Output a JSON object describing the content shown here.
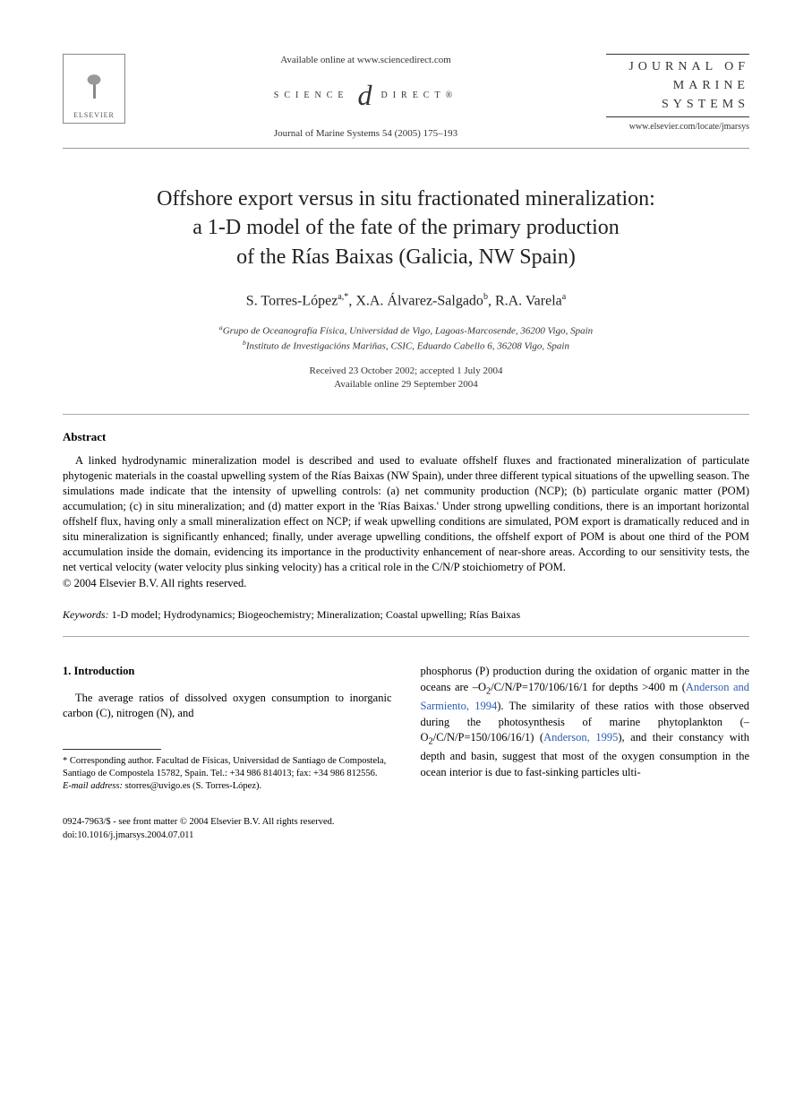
{
  "header": {
    "elsevier_label": "ELSEVIER",
    "available_online": "Available online at www.sciencedirect.com",
    "scidirect_left": "SCIENCE",
    "scidirect_d": "d",
    "scidirect_right": "DIRECT®",
    "citation": "Journal of Marine Systems 54 (2005) 175–193",
    "journal_line1": "JOURNAL OF",
    "journal_line2": "MARINE",
    "journal_line3": "SYSTEMS",
    "journal_url": "www.elsevier.com/locate/jmarsys"
  },
  "title": {
    "line1": "Offshore export versus in situ fractionated mineralization:",
    "line2": "a 1-D model of the fate of the primary production",
    "line3": "of the Rías Baixas (Galicia, NW Spain)"
  },
  "authors": {
    "a1_name": "S. Torres-López",
    "a1_sup": "a,*",
    "a2_name": "X.A. Álvarez-Salgado",
    "a2_sup": "b",
    "a3_name": "R.A. Varela",
    "a3_sup": "a"
  },
  "affiliations": {
    "a": "Grupo de Oceanografía Física, Universidad de Vigo, Lagoas-Marcosende, 36200 Vigo, Spain",
    "a_sup": "a",
    "b": "Instituto de Investigacións Mariñas, CSIC, Eduardo Cabello 6, 36208 Vigo, Spain",
    "b_sup": "b"
  },
  "dates": {
    "received": "Received 23 October 2002; accepted 1 July 2004",
    "online": "Available online 29 September 2004"
  },
  "abstract": {
    "heading": "Abstract",
    "body": "A linked hydrodynamic mineralization model is described and used to evaluate offshelf fluxes and fractionated mineralization of particulate phytogenic materials in the coastal upwelling system of the Rías Baixas (NW Spain), under three different typical situations of the upwelling season. The simulations made indicate that the intensity of upwelling controls: (a) net community production (NCP); (b) particulate organic matter (POM) accumulation; (c) in situ mineralization; and (d) matter export in the 'Rías Baixas.' Under strong upwelling conditions, there is an important horizontal offshelf flux, having only a small mineralization effect on NCP; if weak upwelling conditions are simulated, POM export is dramatically reduced and in situ mineralization is significantly enhanced; finally, under average upwelling conditions, the offshelf export of POM is about one third of the POM accumulation inside the domain, evidencing its importance in the productivity enhancement of near-shore areas. According to our sensitivity tests, the net vertical velocity (water velocity plus sinking velocity) has a critical role in the C/N/P stoichiometry of POM.",
    "copyright": "© 2004 Elsevier B.V. All rights reserved."
  },
  "keywords": {
    "label": "Keywords:",
    "text": " 1-D model; Hydrodynamics; Biogeochemistry; Mineralization; Coastal upwelling; Rías Baixas"
  },
  "intro": {
    "heading": "1. Introduction",
    "left_para": "The average ratios of dissolved oxygen consumption to inorganic carbon (C), nitrogen (N), and",
    "right_para_1a": "phosphorus (P) production during the oxidation of organic matter in the oceans are –O",
    "right_para_1a_sub": "2",
    "right_para_1b": "/C/N/P=170/106/16/1 for depths >400 m (",
    "right_cite1": "Anderson and Sarmiento, 1994",
    "right_para_1c": "). The similarity of these ratios with those observed during the photosynthesis of marine phytoplankton (–O",
    "right_para_1c_sub": "2",
    "right_para_1d": "/C/N/P=150/106/16/1) (",
    "right_cite2": "Anderson, 1995",
    "right_para_1e": "), and their constancy with depth and basin, suggest that most of the oxygen consumption in the ocean interior is due to fast-sinking particles ulti-"
  },
  "footnote": {
    "corr": "* Corresponding author. Facultad de Físicas, Universidad de Santiago de Compostela, Santiago de Compostela 15782, Spain. Tel.: +34 986 814013; fax: +34 986 812556.",
    "email_label": "E-mail address:",
    "email": " storres@uvigo.es (S. Torres-López)."
  },
  "footer": {
    "line1": "0924-7963/$ - see front matter © 2004 Elsevier B.V. All rights reserved.",
    "line2": "doi:10.1016/j.jmarsys.2004.07.011"
  },
  "colors": {
    "text": "#000000",
    "link": "#2a5db0",
    "rule": "#999999",
    "background": "#ffffff"
  },
  "typography": {
    "title_fontsize_pt": 18,
    "body_fontsize_pt": 9.5,
    "font_family": "Times/Georgia serif"
  }
}
